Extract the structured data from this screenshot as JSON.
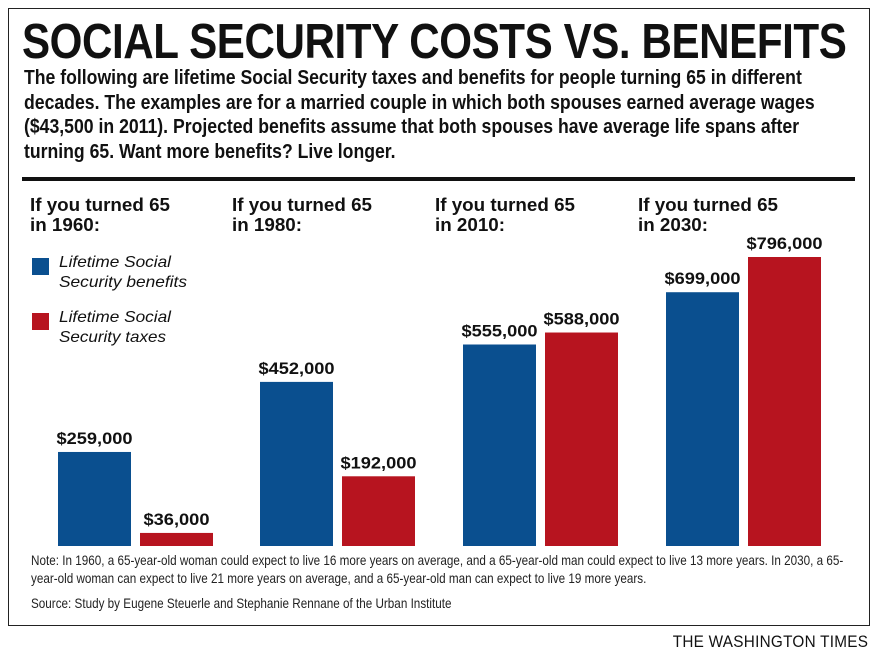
{
  "header": {
    "title": "SOCIAL SECURITY COSTS VS. BENEFITS",
    "subtitle": "The following are lifetime Social Security taxes and benefits for people turning 65 in different decades. The examples are for a married couple in which both spouses earned average wages ($43,500 in 2011). Projected benefits assume that both spouses have average life spans after turning 65. Want more benefits? Live longer."
  },
  "footer": {
    "note": "Note: In 1960, a 65-year-old woman could expect to live 16 more years on average, and a 65-year-old man could expect to live 13 more years. In 2030, a 65-year-old woman can expect to live 21 more years on average, and a 65-year-old man can expect to live 19 more years.",
    "source": "Source: Study by Eugene Steuerle and Stephanie Rennane of the Urban Institute",
    "credit": "THE WASHINGTON TIMES"
  },
  "chart_data": {
    "type": "bar",
    "categories": [
      "1960",
      "1980",
      "2010",
      "2030"
    ],
    "group_labels": [
      [
        "If you turned 65",
        "in 1960:"
      ],
      [
        "If you turned 65",
        "in 1980:"
      ],
      [
        "If you turned 65",
        "in 2010:"
      ],
      [
        "If you turned 65",
        "in 2030:"
      ]
    ],
    "series": [
      {
        "name": "Lifetime Social Security benefits",
        "legend_lines": [
          "Lifetime Social",
          "Security benefits"
        ],
        "color": "#0a4f8f",
        "values": [
          259000,
          452000,
          555000,
          699000
        ],
        "labels": [
          "$259,000",
          "$452,000",
          "$555,000",
          "$699,000"
        ]
      },
      {
        "name": "Lifetime Social Security taxes",
        "legend_lines": [
          "Lifetime Social",
          "Security taxes"
        ],
        "color": "#b7141f",
        "values": [
          36000,
          192000,
          588000,
          796000
        ],
        "labels": [
          "$36,000",
          "$192,000",
          "$588,000",
          "$796,000"
        ]
      }
    ],
    "legend_placement": "top-left",
    "grid": false,
    "ylim": [
      0,
      796000
    ]
  }
}
